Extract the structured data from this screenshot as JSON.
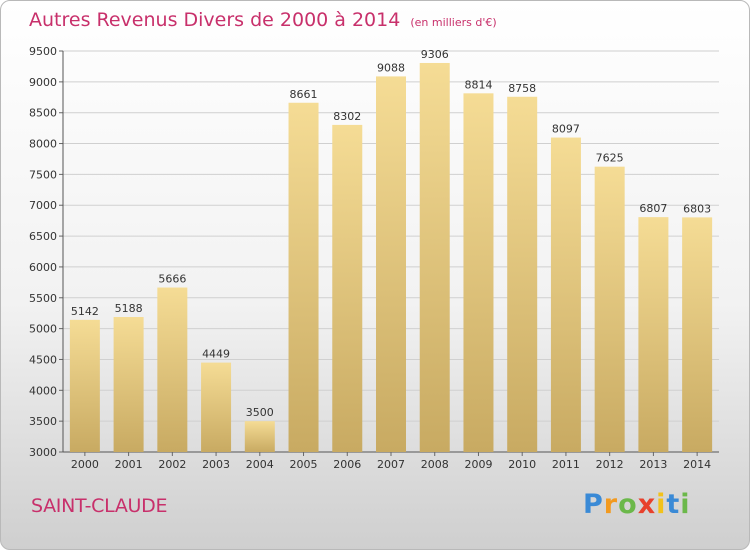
{
  "colors": {
    "title": "#c8306b",
    "bar_light": "#f5dc95",
    "bar_dark": "#c8aa62",
    "grid": "#d0d0d0",
    "text": "#333333"
  },
  "chart_data": {
    "type": "bar",
    "title": "Autres Revenus Divers de 2000 à 2014",
    "unit_note": "(en milliers d'€)",
    "categories": [
      "2000",
      "2001",
      "2002",
      "2003",
      "2004",
      "2005",
      "2006",
      "2007",
      "2008",
      "2009",
      "2010",
      "2011",
      "2012",
      "2013",
      "2014"
    ],
    "values": [
      5142,
      5188,
      5666,
      4449,
      3500,
      8661,
      8302,
      9088,
      9306,
      8814,
      8758,
      8097,
      7625,
      6807,
      6803
    ],
    "ylim": [
      3000,
      9500
    ],
    "yticks": [
      3000,
      3500,
      4000,
      4500,
      5000,
      5500,
      6000,
      6500,
      7000,
      7500,
      8000,
      8500,
      9000,
      9500
    ],
    "grid": true,
    "data_labels": true
  },
  "footer": {
    "city": "SAINT-CLAUDE",
    "logo_letters": [
      "P",
      "r",
      "o",
      "x",
      "i",
      "t",
      "i"
    ],
    "logo_colors": [
      "#3a8ad6",
      "#f29a1f",
      "#6bb84a",
      "#e8412c",
      "#f2c21a",
      "#3a8ad6",
      "#6bb84a"
    ]
  }
}
